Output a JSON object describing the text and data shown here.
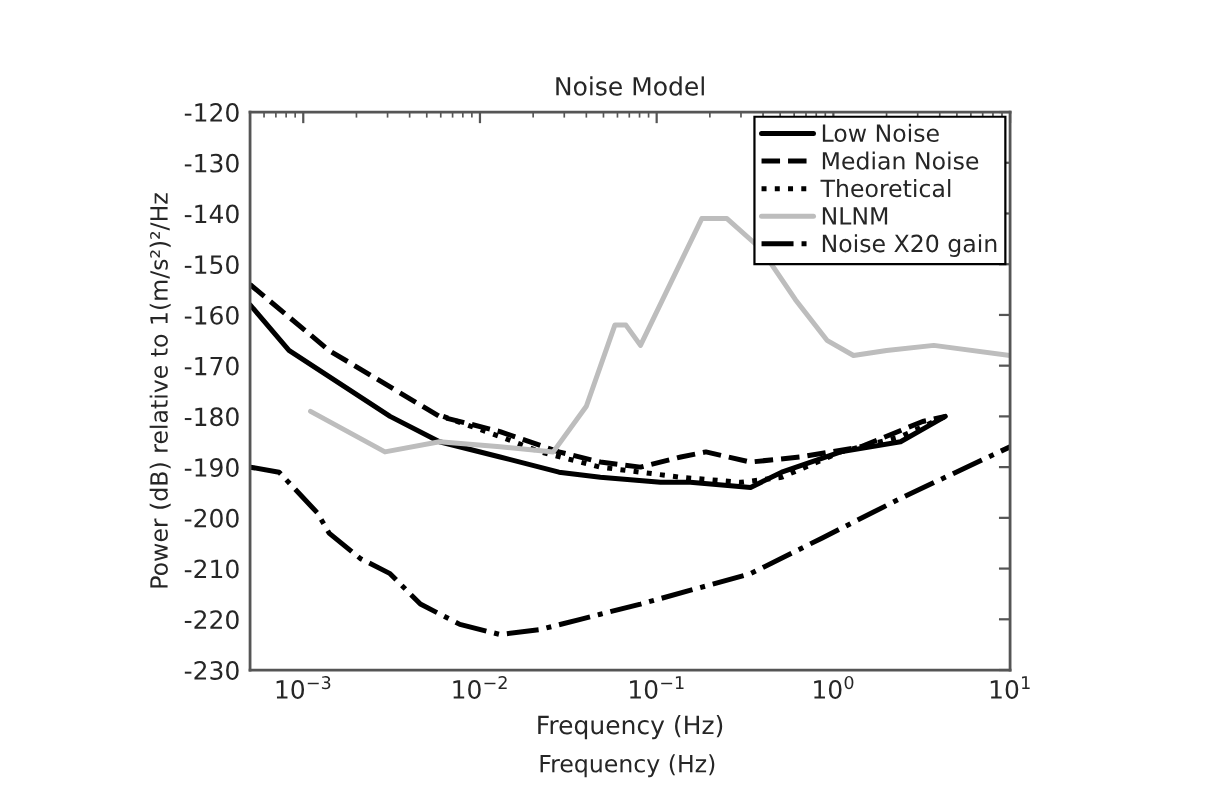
{
  "chart_data": {
    "type": "line",
    "title": "Noise Model",
    "xlabel": "Frequency (Hz)",
    "ylabel": "Power (dB) relative to 1(m/s²)²/Hz",
    "annotations": [
      "Frequency (Hz)"
    ],
    "log": "x",
    "legend": "top right",
    "xlim": [
      0.0005,
      10
    ],
    "xticks": [
      {
        "value": 0.001,
        "label": "10$^{−3}$"
      },
      {
        "value": 0.01,
        "label": "10$^{−2}$"
      },
      {
        "value": 0.1,
        "label": "10$^{−1}$"
      },
      {
        "value": 1,
        "label": "10$^{0}$"
      },
      {
        "value": 10,
        "label": "10$^{1}$"
      }
    ],
    "ylim": [
      -230,
      -120
    ],
    "yticks": [
      -230,
      -220,
      -210,
      -200,
      -190,
      -180,
      -170,
      -160,
      -150,
      -140,
      -130,
      -120
    ],
    "series": [
      {
        "name": "Low Noise",
        "color": "#000000",
        "line_style": "solid",
        "x": [
          0.0005,
          0.00083,
          0.0031,
          0.0059,
          0.013,
          0.028,
          0.048,
          0.105,
          0.155,
          0.34,
          0.51,
          1.1,
          2.4,
          4.3
        ],
        "values": [
          -158,
          -167,
          -180,
          -185,
          -188,
          -191,
          -192,
          -193,
          -193,
          -194,
          -191,
          -187,
          -185,
          -180
        ]
      },
      {
        "name": "Median Noise",
        "color": "#000000",
        "line_style": "dashed",
        "x": [
          0.0005,
          0.0014,
          0.0059,
          0.013,
          0.028,
          0.048,
          0.081,
          0.137,
          0.19,
          0.34,
          0.65,
          1.43,
          3.2,
          4.3
        ],
        "values": [
          -154,
          -167,
          -180,
          -183,
          -187,
          -189,
          -190,
          -188,
          -187,
          -189,
          -188,
          -186,
          -181,
          -180
        ]
      },
      {
        "name": "Theoretical",
        "color": "#000000",
        "line_style": "dotted",
        "x": [
          0.0062,
          0.013,
          0.022,
          0.048,
          0.137,
          0.3,
          0.51,
          1.1,
          2.4,
          4.3
        ],
        "values": [
          -180,
          -184,
          -187,
          -190,
          -192,
          -193,
          -192,
          -187,
          -184,
          -180
        ]
      },
      {
        "name": "NLNM",
        "color": "#bdbdbd",
        "line_style": "solid",
        "x": [
          0.0011,
          0.0029,
          0.0059,
          0.013,
          0.026,
          0.04,
          0.058,
          0.067,
          0.081,
          0.18,
          0.25,
          0.39,
          0.61,
          0.92,
          1.3,
          2.0,
          3.7,
          10
        ],
        "values": [
          -179,
          -187,
          -185,
          -186,
          -187,
          -178,
          -162,
          -162,
          -166,
          -141,
          -141,
          -147,
          -157,
          -165,
          -168,
          -167,
          -166,
          -168
        ]
      },
      {
        "name": "Noise X20 gain",
        "color": "#000000",
        "line_style": "dashdot",
        "x": [
          0.0005,
          0.00073,
          0.0012,
          0.0014,
          0.0021,
          0.0031,
          0.0046,
          0.0077,
          0.013,
          0.022,
          0.037,
          0.048,
          0.081,
          0.34,
          0.86,
          2.45,
          10
        ],
        "values": [
          -190,
          -191,
          -199,
          -203,
          -208,
          -211,
          -217,
          -221,
          -223,
          -222,
          -220,
          -219,
          -217,
          -211,
          -204,
          -196,
          -186
        ]
      }
    ]
  }
}
